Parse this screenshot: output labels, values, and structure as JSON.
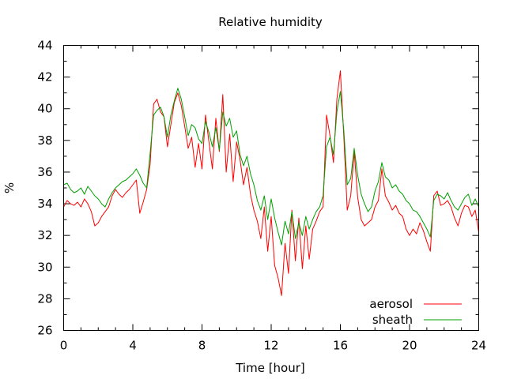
{
  "chart_data": {
    "type": "line",
    "title": "Relative humidity",
    "xlabel": "Time [hour]",
    "ylabel": "%",
    "xlim": [
      0,
      24
    ],
    "ylim": [
      26,
      44
    ],
    "xticks": [
      0,
      4,
      8,
      12,
      16,
      20,
      24
    ],
    "yticks": [
      26,
      28,
      30,
      32,
      34,
      36,
      38,
      40,
      42,
      44
    ],
    "x_minor_step": 1,
    "y_minor_step": 1,
    "grid": false,
    "legend_position": "bottom-right",
    "series": [
      {
        "name": "aerosol",
        "color": "#ff0000",
        "x": [
          0,
          0.2,
          0.4,
          0.6,
          0.8,
          1.0,
          1.2,
          1.4,
          1.6,
          1.8,
          2.0,
          2.2,
          2.4,
          2.6,
          2.8,
          3.0,
          3.2,
          3.4,
          3.6,
          3.8,
          4.0,
          4.2,
          4.4,
          4.6,
          4.8,
          5.0,
          5.2,
          5.4,
          5.6,
          5.8,
          6.0,
          6.2,
          6.4,
          6.6,
          6.8,
          7.0,
          7.2,
          7.4,
          7.6,
          7.8,
          8.0,
          8.2,
          8.4,
          8.6,
          8.8,
          9.0,
          9.2,
          9.4,
          9.6,
          9.8,
          10.0,
          10.2,
          10.4,
          10.6,
          10.8,
          11.0,
          11.2,
          11.4,
          11.6,
          11.8,
          12.0,
          12.2,
          12.4,
          12.6,
          12.8,
          13.0,
          13.2,
          13.4,
          13.6,
          13.8,
          14.0,
          14.2,
          14.4,
          14.6,
          14.8,
          15.0,
          15.2,
          15.4,
          15.6,
          15.8,
          16.0,
          16.2,
          16.4,
          16.6,
          16.8,
          17.0,
          17.2,
          17.4,
          17.6,
          17.8,
          18.0,
          18.2,
          18.4,
          18.6,
          18.8,
          19.0,
          19.2,
          19.4,
          19.6,
          19.8,
          20.0,
          20.2,
          20.4,
          20.6,
          20.8,
          21.0,
          21.2,
          21.4,
          21.6,
          21.8,
          22.0,
          22.2,
          22.4,
          22.6,
          22.8,
          23.0,
          23.2,
          23.4,
          23.6,
          23.8,
          24.0
        ],
        "values": [
          33.8,
          34.2,
          34.0,
          33.9,
          34.1,
          33.8,
          34.3,
          34.0,
          33.5,
          32.6,
          32.8,
          33.2,
          33.5,
          33.8,
          34.5,
          34.9,
          34.6,
          34.4,
          34.7,
          34.9,
          35.2,
          35.5,
          33.4,
          34.1,
          34.9,
          36.5,
          40.3,
          40.6,
          39.8,
          39.5,
          37.6,
          39.0,
          40.4,
          41.0,
          40.2,
          38.9,
          37.5,
          38.2,
          36.3,
          37.8,
          36.2,
          39.6,
          37.9,
          36.2,
          39.4,
          37.3,
          40.9,
          36.0,
          38.4,
          35.4,
          37.9,
          36.8,
          35.2,
          36.3,
          34.6,
          33.6,
          32.9,
          31.8,
          33.8,
          31.0,
          33.2,
          30.1,
          29.3,
          28.2,
          31.5,
          29.6,
          33.6,
          30.4,
          33.1,
          29.9,
          32.6,
          30.5,
          32.4,
          32.9,
          33.5,
          33.8,
          39.6,
          38.3,
          36.6,
          40.6,
          42.4,
          38.2,
          33.6,
          34.5,
          37.3,
          34.4,
          33.0,
          32.6,
          32.8,
          33.0,
          33.8,
          34.2,
          36.2,
          34.5,
          34.1,
          33.6,
          33.9,
          33.4,
          33.2,
          32.4,
          32.0,
          32.4,
          32.1,
          32.8,
          32.3,
          31.6,
          31.0,
          34.5,
          34.8,
          33.9,
          34.0,
          34.2,
          33.8,
          33.1,
          32.6,
          33.4,
          33.9,
          33.8,
          33.2,
          33.6,
          32.2
        ]
      },
      {
        "name": "sheath",
        "color": "#00a000",
        "x": [
          0,
          0.2,
          0.4,
          0.6,
          0.8,
          1.0,
          1.2,
          1.4,
          1.6,
          1.8,
          2.0,
          2.2,
          2.4,
          2.6,
          2.8,
          3.0,
          3.2,
          3.4,
          3.6,
          3.8,
          4.0,
          4.2,
          4.4,
          4.6,
          4.8,
          5.0,
          5.2,
          5.4,
          5.6,
          5.8,
          6.0,
          6.2,
          6.4,
          6.6,
          6.8,
          7.0,
          7.2,
          7.4,
          7.6,
          7.8,
          8.0,
          8.2,
          8.4,
          8.6,
          8.8,
          9.0,
          9.2,
          9.4,
          9.6,
          9.8,
          10.0,
          10.2,
          10.4,
          10.6,
          10.8,
          11.0,
          11.2,
          11.4,
          11.6,
          11.8,
          12.0,
          12.2,
          12.4,
          12.6,
          12.8,
          13.0,
          13.2,
          13.4,
          13.6,
          13.8,
          14.0,
          14.2,
          14.4,
          14.6,
          14.8,
          15.0,
          15.2,
          15.4,
          15.6,
          15.8,
          16.0,
          16.2,
          16.4,
          16.6,
          16.8,
          17.0,
          17.2,
          17.4,
          17.6,
          17.8,
          18.0,
          18.2,
          18.4,
          18.6,
          18.8,
          19.0,
          19.2,
          19.4,
          19.6,
          19.8,
          20.0,
          20.2,
          20.4,
          20.6,
          20.8,
          21.0,
          21.2,
          21.4,
          21.6,
          21.8,
          22.0,
          22.2,
          22.4,
          22.6,
          22.8,
          23.0,
          23.2,
          23.4,
          23.6,
          23.8,
          24.0
        ],
        "values": [
          35.2,
          35.3,
          34.9,
          34.7,
          34.8,
          35.0,
          34.6,
          35.1,
          34.8,
          34.5,
          34.3,
          34.0,
          33.8,
          34.3,
          34.7,
          35.0,
          35.2,
          35.4,
          35.5,
          35.7,
          35.9,
          36.2,
          35.8,
          35.3,
          35.0,
          37.2,
          39.6,
          39.9,
          40.1,
          39.5,
          38.2,
          39.6,
          40.5,
          41.3,
          40.6,
          39.5,
          38.3,
          39.0,
          38.8,
          38.1,
          37.8,
          39.2,
          38.5,
          37.6,
          38.8,
          37.4,
          39.8,
          38.9,
          39.4,
          38.2,
          38.6,
          37.1,
          36.4,
          37.0,
          35.9,
          35.2,
          34.2,
          33.6,
          34.5,
          33.0,
          34.3,
          33.1,
          32.2,
          31.4,
          32.9,
          32.1,
          33.5,
          31.8,
          32.8,
          32.0,
          33.2,
          32.4,
          33.0,
          33.5,
          33.8,
          34.5,
          37.6,
          38.2,
          37.1,
          39.8,
          41.1,
          38.6,
          35.2,
          35.6,
          37.5,
          35.8,
          34.6,
          34.0,
          33.5,
          33.8,
          34.8,
          35.4,
          36.6,
          35.7,
          35.5,
          35.0,
          35.2,
          34.8,
          34.6,
          34.2,
          34.0,
          33.6,
          33.5,
          33.2,
          32.8,
          32.4,
          31.9,
          34.2,
          34.6,
          34.5,
          34.3,
          34.7,
          34.2,
          33.8,
          33.6,
          34.0,
          34.4,
          34.6,
          33.9,
          34.3,
          33.8
        ]
      }
    ]
  }
}
